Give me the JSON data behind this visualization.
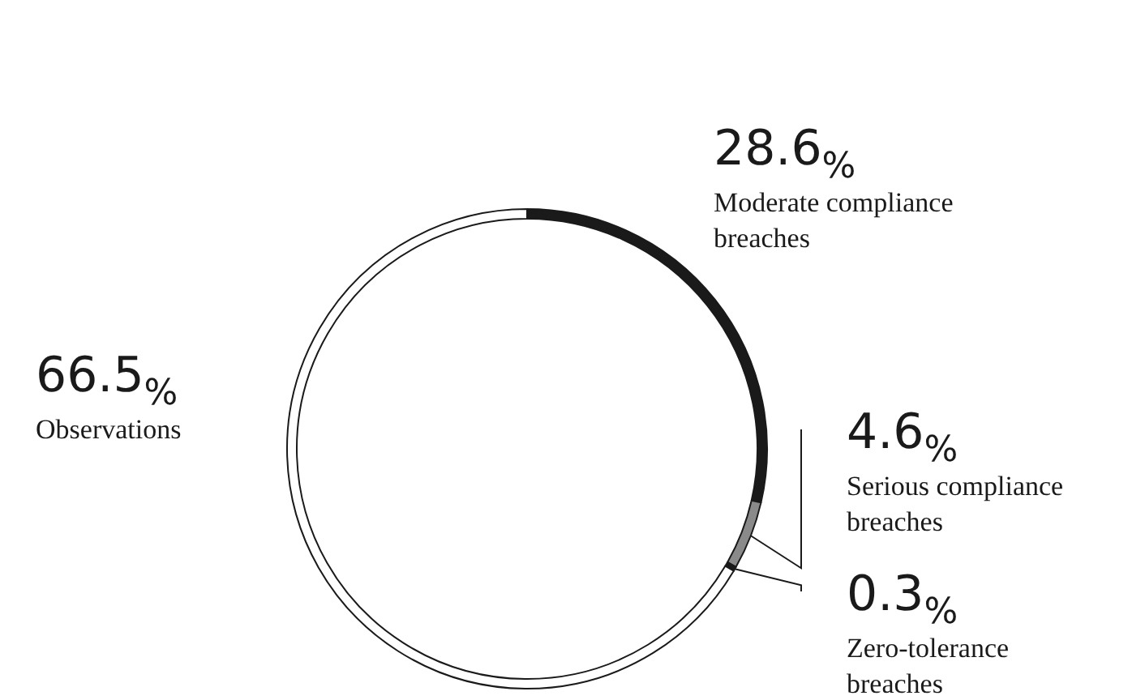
{
  "chart_data": {
    "type": "donut",
    "categories": [
      "Moderate compliance breaches",
      "Serious compliance breaches",
      "Zero-tolerance breaches",
      "Observations"
    ],
    "values": [
      28.6,
      4.6,
      0.3,
      66.5
    ],
    "colors": [
      "#1a1a1a",
      "#8a8a8a",
      "#1a1a1a",
      "#ffffff"
    ],
    "value_labels": [
      "28.6%",
      "4.6%",
      "0.3%",
      "66.5%"
    ],
    "legend": false
  }
}
